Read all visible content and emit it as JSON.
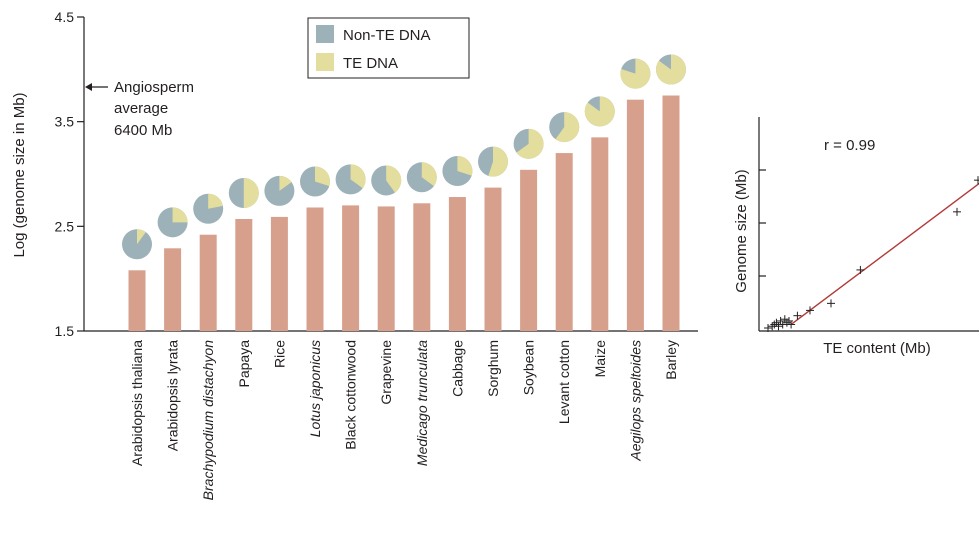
{
  "colors": {
    "bar": "#d6a08c",
    "non_te": "#9db1b9",
    "te": "#e3de9e",
    "axis": "#231f20",
    "fit_line": "#b03a35"
  },
  "legend": {
    "items": [
      {
        "label": "Non-TE DNA",
        "color": "#9db1b9"
      },
      {
        "label": "TE DNA",
        "color": "#e3de9e"
      }
    ]
  },
  "annotation": {
    "line1": "Angiosperm",
    "line2": "average",
    "line3": "6400 Mb"
  },
  "chart_data": [
    {
      "type": "bar",
      "ylabel": "Log (genome size in Mb)",
      "ylim": [
        1.5,
        4.5
      ],
      "yticks": [
        "1.5",
        "2.5",
        "3.5",
        "4.5"
      ],
      "legend_position": "top-center",
      "categories": [
        "Arabidopsis thaliana",
        "Arabidopsis lyrata",
        "Brachypodium distachyon",
        "Papaya",
        "Rice",
        "Lotus japonicus",
        "Black cottonwood",
        "Grapevine",
        "Medicago trunculata",
        "Cabbage",
        "Sorghum",
        "Soybean",
        "Levant cotton",
        "Maize",
        "Aegilops speltoides",
        "Barley"
      ],
      "italic": [
        false,
        false,
        true,
        false,
        false,
        true,
        false,
        false,
        true,
        false,
        false,
        false,
        false,
        false,
        true,
        false
      ],
      "values": [
        2.08,
        2.29,
        2.42,
        2.57,
        2.59,
        2.68,
        2.7,
        2.69,
        2.72,
        2.78,
        2.87,
        3.04,
        3.2,
        3.35,
        3.71,
        3.75
      ],
      "te_fraction": [
        0.1,
        0.25,
        0.22,
        0.5,
        0.15,
        0.3,
        0.35,
        0.4,
        0.35,
        0.3,
        0.55,
        0.65,
        0.6,
        0.85,
        0.8,
        0.85
      ],
      "reference_line": {
        "value": 3.81,
        "label": "Angiosperm average 6400 Mb"
      }
    },
    {
      "type": "scatter",
      "xlabel": "TE content (Mb)",
      "ylabel": "Genome size (Mb)",
      "annotation": "r = 0.99",
      "xlim": [
        0,
        100
      ],
      "ylim": [
        0,
        100
      ],
      "points": [
        [
          0,
          0
        ],
        [
          2,
          1
        ],
        [
          3,
          2
        ],
        [
          4,
          3
        ],
        [
          5,
          1
        ],
        [
          6,
          4
        ],
        [
          7,
          2
        ],
        [
          8,
          5
        ],
        [
          9,
          3
        ],
        [
          10,
          4
        ],
        [
          11,
          2
        ],
        [
          14,
          7
        ],
        [
          20,
          10
        ],
        [
          30,
          14
        ],
        [
          44,
          33
        ],
        [
          90,
          66
        ],
        [
          100,
          84
        ]
      ],
      "fit": [
        [
          11,
          2
        ],
        [
          106,
          87
        ]
      ]
    }
  ]
}
